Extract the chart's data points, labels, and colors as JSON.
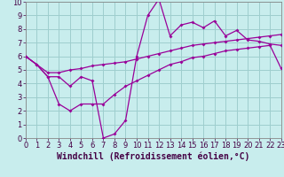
{
  "xlabel": "Windchill (Refroidissement éolien,°C)",
  "xlim": [
    0,
    23
  ],
  "ylim": [
    0,
    10
  ],
  "xticks": [
    0,
    1,
    2,
    3,
    4,
    5,
    6,
    7,
    8,
    9,
    10,
    11,
    12,
    13,
    14,
    15,
    16,
    17,
    18,
    19,
    20,
    21,
    22,
    23
  ],
  "yticks": [
    0,
    1,
    2,
    3,
    4,
    5,
    6,
    7,
    8,
    9,
    10
  ],
  "background_color": "#c8eded",
  "grid_color": "#9ecece",
  "line_color": "#990099",
  "line1_x": [
    0,
    1,
    2,
    3,
    4,
    5,
    6,
    7,
    8,
    9,
    10,
    11,
    12,
    13,
    14,
    15,
    16,
    17,
    18,
    19,
    20,
    21,
    22,
    23
  ],
  "line1_y": [
    6.0,
    5.4,
    4.5,
    4.5,
    3.8,
    4.5,
    4.2,
    0.0,
    0.3,
    1.3,
    6.0,
    9.0,
    10.2,
    7.5,
    8.3,
    8.5,
    8.1,
    8.6,
    7.5,
    7.9,
    7.2,
    7.1,
    6.9,
    6.8
  ],
  "line2_x": [
    0,
    2,
    3,
    4,
    5,
    6,
    7,
    8,
    9,
    10,
    11,
    12,
    13,
    14,
    15,
    16,
    17,
    18,
    19,
    20,
    21,
    22,
    23
  ],
  "line2_y": [
    6.0,
    4.8,
    4.8,
    5.0,
    5.1,
    5.3,
    5.4,
    5.5,
    5.6,
    5.8,
    6.0,
    6.2,
    6.4,
    6.6,
    6.8,
    6.9,
    7.0,
    7.1,
    7.2,
    7.3,
    7.4,
    7.5,
    7.6
  ],
  "line3_x": [
    0,
    1,
    2,
    3,
    4,
    5,
    6,
    7,
    8,
    9,
    10,
    11,
    12,
    13,
    14,
    15,
    16,
    17,
    18,
    19,
    20,
    21,
    22,
    23
  ],
  "line3_y": [
    6.0,
    5.4,
    4.5,
    2.5,
    2.0,
    2.5,
    2.5,
    2.5,
    3.2,
    3.8,
    4.2,
    4.6,
    5.0,
    5.4,
    5.6,
    5.9,
    6.0,
    6.2,
    6.4,
    6.5,
    6.6,
    6.7,
    6.8,
    5.1
  ],
  "tick_fontsize": 6,
  "label_fontsize": 7
}
